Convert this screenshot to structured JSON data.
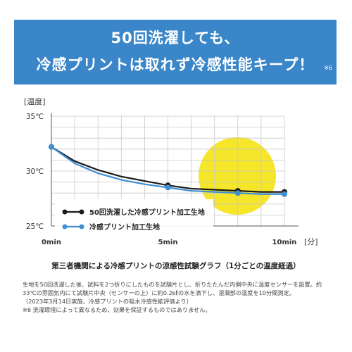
{
  "banner": {
    "line1": "50回洗濯しても、",
    "line2": "冷感プリントは取れず冷感性能キープ！",
    "note": "※6"
  },
  "colors": {
    "banner_bg": "#3a86c8",
    "highlight": "#f5e62a",
    "series_black": "#1a1a1a",
    "series_blue": "#3f8fd2",
    "grid": "#c8c8c8"
  },
  "chart_data": {
    "type": "line",
    "ylabel": "[温度]",
    "xunit": "[分]",
    "yticks": [
      "35℃",
      "30℃",
      "25℃"
    ],
    "ylim": [
      25,
      35
    ],
    "xticks": [
      "0min",
      "5min",
      "10min"
    ],
    "xlim": [
      0,
      10
    ],
    "grid": true,
    "legend_position": "bottom-left",
    "x": [
      0,
      1,
      2,
      3,
      4,
      5,
      6,
      7,
      8,
      9,
      10
    ],
    "series": [
      {
        "name": "50回洗濯した冷感プリント加工生地",
        "color": "#1a1a1a",
        "values": [
          32.2,
          30.9,
          30.1,
          29.5,
          29.1,
          28.7,
          28.4,
          28.3,
          28.2,
          28.1,
          28.1
        ],
        "markers": [
          0,
          5,
          8,
          10
        ]
      },
      {
        "name": "冷感プリント加工生地",
        "color": "#3f8fd2",
        "values": [
          32.2,
          30.7,
          29.8,
          29.2,
          28.8,
          28.5,
          28.2,
          28.1,
          28.0,
          27.9,
          27.9
        ],
        "markers": [
          0,
          5,
          8,
          10
        ]
      }
    ]
  },
  "caption": "第三者機関による冷感プリントの涼感性試験グラフ（1分ごとの温度経過）",
  "notes": [
    "生地を50回洗濯した後、試料を2つ折りにしたものを試験片とし、折りたたんだ内側中央に温度センサーを設置。約",
    "33℃の雰囲気内にて試験片中央（センサーの上）に約0.2㎖の水を滴下し、湿潤部の温度を10分間測定。",
    "（2023年3月14日実施、冷感プリントの吸水冷感性能評価より）",
    "※6 洗濯環境によって異なるため、効果を保証するものではありません。"
  ]
}
